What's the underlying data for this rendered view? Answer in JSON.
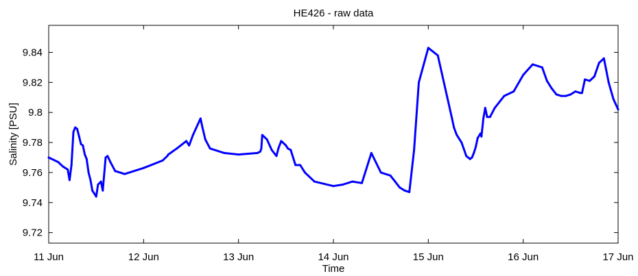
{
  "chart_data": {
    "type": "line",
    "title": "HE426 - raw data",
    "xlabel": "Time",
    "ylabel": "Salinity [PSU]",
    "xlim": [
      0,
      6
    ],
    "ylim": [
      9.713,
      9.858
    ],
    "x_ticks": [
      0,
      1,
      2,
      3,
      4,
      5,
      6
    ],
    "x_tick_labels": [
      "11 Jun",
      "12 Jun",
      "13 Jun",
      "14 Jun",
      "15 Jun",
      "16 Jun",
      "17 Jun"
    ],
    "y_ticks": [
      9.72,
      9.74,
      9.76,
      9.78,
      9.8,
      9.82,
      9.84
    ],
    "y_tick_labels": [
      "9.72",
      "9.74",
      "9.76",
      "9.78",
      "9.8",
      "9.82",
      "9.84"
    ],
    "grid": false,
    "legend": "none",
    "color": "#0000ff",
    "series": [
      {
        "x_unit": "days since 11 Jun",
        "x": [
          0.0,
          0.1,
          0.15,
          0.2,
          0.22,
          0.24,
          0.26,
          0.28,
          0.3,
          0.32,
          0.34,
          0.36,
          0.38,
          0.4,
          0.42,
          0.44,
          0.46,
          0.5,
          0.52,
          0.55,
          0.57,
          0.6,
          0.62,
          0.65,
          0.7,
          0.8,
          1.0,
          1.2,
          1.25,
          1.26,
          1.35,
          1.45,
          1.48,
          1.52,
          1.6,
          1.62,
          1.65,
          1.7,
          1.85,
          2.0,
          2.2,
          2.23,
          2.24,
          2.25,
          2.3,
          2.35,
          2.4,
          2.42,
          2.45,
          2.5,
          2.52,
          2.55,
          2.6,
          2.65,
          2.7,
          2.8,
          3.0,
          3.1,
          3.2,
          3.3,
          3.4,
          3.5,
          3.6,
          3.65,
          3.7,
          3.75,
          3.8,
          3.85,
          3.9,
          4.0,
          4.1,
          4.2,
          4.25,
          4.27,
          4.3,
          4.35,
          4.4,
          4.42,
          4.44,
          4.46,
          4.48,
          4.5,
          4.52,
          4.55,
          4.56,
          4.58,
          4.6,
          4.62,
          4.65,
          4.7,
          4.8,
          4.9,
          5.0,
          5.1,
          5.2,
          5.25,
          5.3,
          5.35,
          5.4,
          5.45,
          5.5,
          5.55,
          5.6,
          5.62,
          5.65,
          5.7,
          5.75,
          5.8,
          5.85,
          5.9,
          5.95,
          6.0
        ],
        "y": [
          9.77,
          9.767,
          9.764,
          9.762,
          9.755,
          9.765,
          9.787,
          9.79,
          9.789,
          9.784,
          9.779,
          9.778,
          9.772,
          9.769,
          9.76,
          9.755,
          9.748,
          9.744,
          9.752,
          9.754,
          9.748,
          9.77,
          9.771,
          9.767,
          9.761,
          9.759,
          9.763,
          9.768,
          9.771,
          9.772,
          9.776,
          9.781,
          9.778,
          9.785,
          9.796,
          9.79,
          9.782,
          9.776,
          9.773,
          9.772,
          9.773,
          9.774,
          9.776,
          9.785,
          9.782,
          9.775,
          9.771,
          9.776,
          9.781,
          9.778,
          9.776,
          9.775,
          9.765,
          9.765,
          9.76,
          9.754,
          9.751,
          9.752,
          9.754,
          9.753,
          9.773,
          9.76,
          9.758,
          9.754,
          9.75,
          9.748,
          9.747,
          9.775,
          9.82,
          9.843,
          9.838,
          9.81,
          9.796,
          9.79,
          9.785,
          9.78,
          9.771,
          9.77,
          9.769,
          9.77,
          9.773,
          9.777,
          9.783,
          9.786,
          9.784,
          9.796,
          9.803,
          9.797,
          9.797,
          9.803,
          9.811,
          9.814,
          9.825,
          9.832,
          9.83,
          9.821,
          9.816,
          9.812,
          9.811,
          9.811,
          9.812,
          9.814,
          9.813,
          9.813,
          9.822,
          9.821,
          9.824,
          9.833,
          9.836,
          9.82,
          9.809,
          9.802
        ]
      }
    ]
  }
}
